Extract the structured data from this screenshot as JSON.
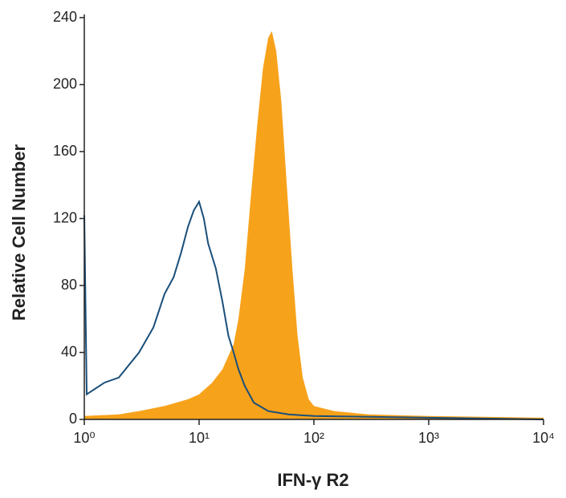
{
  "chart_data": {
    "type": "histogram",
    "xlabel": "IFN-γ R2",
    "ylabel": "Relative Cell Number",
    "xscale": "log",
    "xlim": [
      1,
      10000
    ],
    "xticks": [
      {
        "value": 1,
        "label": "10⁰"
      },
      {
        "value": 10,
        "label": "10¹"
      },
      {
        "value": 100,
        "label": "10²"
      },
      {
        "value": 1000,
        "label": "10³"
      },
      {
        "value": 10000,
        "label": "10⁴"
      }
    ],
    "ylim": [
      0,
      240
    ],
    "yticks": [
      0,
      40,
      80,
      120,
      160,
      200,
      240
    ],
    "series": [
      {
        "color": "#f7a21b",
        "filled": true,
        "x": [
          1,
          2,
          3,
          5,
          8,
          10,
          13,
          16,
          20,
          22,
          25,
          28,
          32,
          36,
          40,
          43,
          47,
          52,
          58,
          65,
          72,
          80,
          90,
          100,
          150,
          300,
          1000,
          10000
        ],
        "values": [
          2,
          3,
          5,
          8,
          12,
          15,
          22,
          30,
          45,
          60,
          90,
          130,
          175,
          210,
          228,
          232,
          220,
          190,
          140,
          90,
          50,
          25,
          12,
          8,
          5,
          3,
          2,
          1
        ]
      },
      {
        "color": "#1a4f7a",
        "filled": false,
        "x": [
          1,
          1.05,
          1.5,
          2,
          3,
          4,
          5,
          6,
          7,
          8,
          9,
          10,
          11,
          12,
          14,
          16,
          18,
          20,
          22,
          25,
          30,
          40,
          60,
          100,
          1000,
          10000
        ],
        "values": [
          122,
          15,
          22,
          25,
          40,
          55,
          75,
          85,
          100,
          115,
          125,
          130,
          120,
          105,
          90,
          70,
          50,
          40,
          30,
          20,
          10,
          5,
          3,
          2,
          1,
          0
        ]
      }
    ]
  }
}
